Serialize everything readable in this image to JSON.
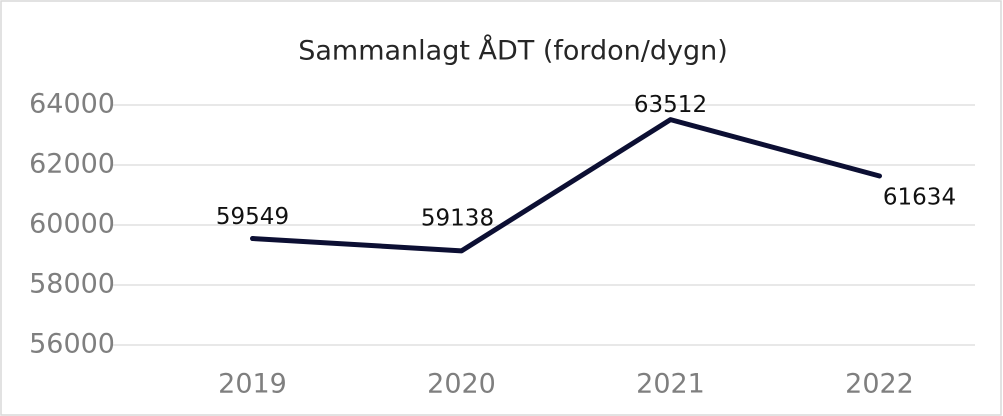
{
  "chart_data": {
    "type": "line",
    "title": "Sammanlagt ÅDT (fordon/dygn)",
    "categories": [
      "2019",
      "2020",
      "2021",
      "2022"
    ],
    "series": [
      {
        "name": "Sammanlagt ÅDT",
        "color": "#0c0f33",
        "values": [
          59549,
          59138,
          63512,
          61634
        ]
      }
    ],
    "ylim": [
      56000,
      64000
    ],
    "yticks": [
      56000,
      58000,
      60000,
      62000,
      64000
    ],
    "grid": true
  }
}
